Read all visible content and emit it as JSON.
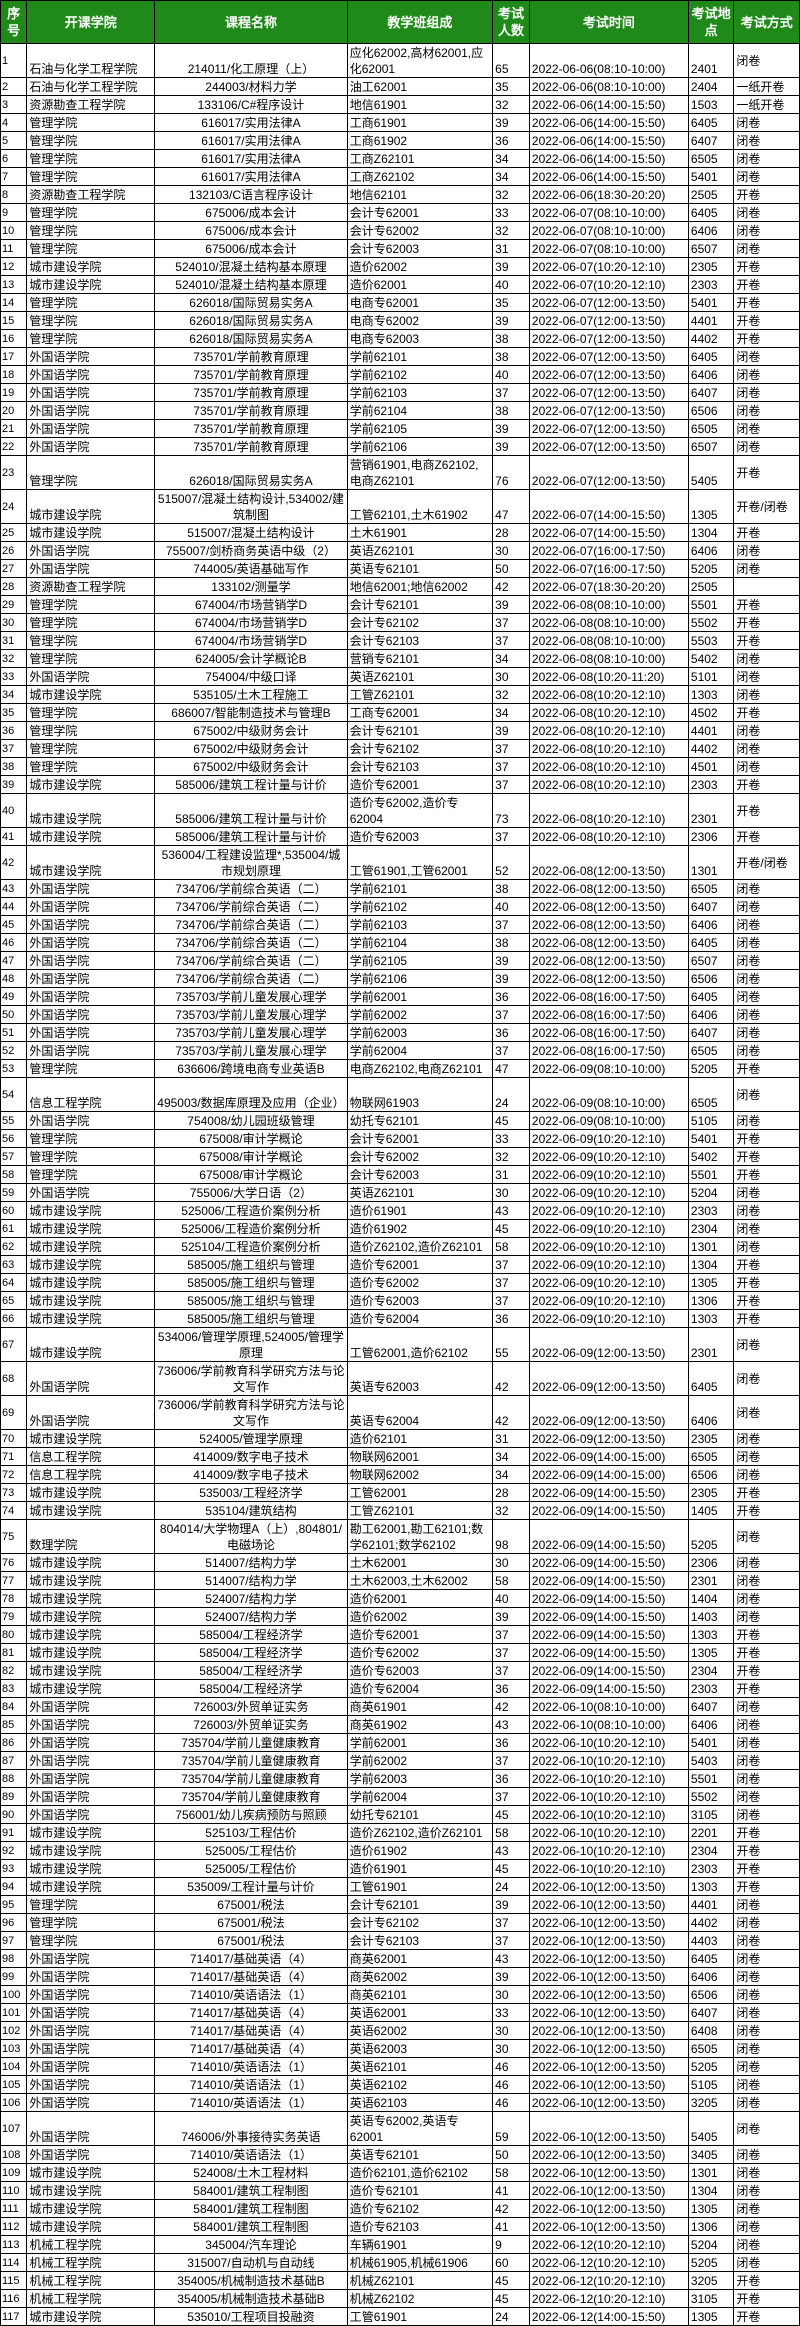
{
  "header": {
    "no": "序号",
    "college": "开课学院",
    "course": "课程名称",
    "classes": "教学班组成",
    "count": "考试人数",
    "time": "考试时间",
    "room": "考试地点",
    "type": "考试方式"
  },
  "colors": {
    "header_bg": "#1f8a1a",
    "header_text": "#ffffff"
  },
  "rows": [
    [
      "1",
      "石油与化学工程学院",
      "214011/化工原理（上）",
      "应化62002,高材62001,应化62001",
      "65",
      "2022-06-06(08:10-10:00)",
      "2401",
      "闭卷"
    ],
    [
      "2",
      "石油与化学工程学院",
      "244003/材料力学",
      "油工62001",
      "35",
      "2022-06-06(08:10-10:00)",
      "2404",
      "一纸开卷"
    ],
    [
      "3",
      "资源勘查工程学院",
      "133106/C#程序设计",
      "地信61901",
      "32",
      "2022-06-06(14:00-15:50)",
      "1503",
      "一纸开卷"
    ],
    [
      "4",
      "管理学院",
      "616017/实用法律A",
      "工商61901",
      "39",
      "2022-06-06(14:00-15:50)",
      "6405",
      "闭卷"
    ],
    [
      "5",
      "管理学院",
      "616017/实用法律A",
      "工商61902",
      "36",
      "2022-06-06(14:00-15:50)",
      "6407",
      "闭卷"
    ],
    [
      "6",
      "管理学院",
      "616017/实用法律A",
      "工商Z62101",
      "34",
      "2022-06-06(14:00-15:50)",
      "6505",
      "闭卷"
    ],
    [
      "7",
      "管理学院",
      "616017/实用法律A",
      "工商Z62102",
      "34",
      "2022-06-06(14:00-15:50)",
      "5401",
      "闭卷"
    ],
    [
      "8",
      "资源勘查工程学院",
      "132103/C语言程序设计",
      "地信62101",
      "32",
      "2022-06-06(18:30-20:20)",
      "2505",
      "开卷"
    ],
    [
      "9",
      "管理学院",
      "675006/成本会计",
      "会计专62001",
      "33",
      "2022-06-07(08:10-10:00)",
      "6405",
      "闭卷"
    ],
    [
      "10",
      "管理学院",
      "675006/成本会计",
      "会计专62002",
      "32",
      "2022-06-07(08:10-10:00)",
      "6406",
      "闭卷"
    ],
    [
      "11",
      "管理学院",
      "675006/成本会计",
      "会计专62003",
      "31",
      "2022-06-07(08:10-10:00)",
      "6507",
      "闭卷"
    ],
    [
      "12",
      "城市建设学院",
      "524010/混凝土结构基本原理",
      "造价62002",
      "39",
      "2022-06-07(10:20-12:10)",
      "2305",
      "开卷"
    ],
    [
      "13",
      "城市建设学院",
      "524010/混凝土结构基本原理",
      "造价62001",
      "40",
      "2022-06-07(10:20-12:10)",
      "2303",
      "开卷"
    ],
    [
      "14",
      "管理学院",
      "626018/国际贸易实务A",
      "电商专62001",
      "35",
      "2022-06-07(12:00-13:50)",
      "5401",
      "开卷"
    ],
    [
      "15",
      "管理学院",
      "626018/国际贸易实务A",
      "电商专62002",
      "39",
      "2022-06-07(12:00-13:50)",
      "4401",
      "开卷"
    ],
    [
      "16",
      "管理学院",
      "626018/国际贸易实务A",
      "电商专62003",
      "38",
      "2022-06-07(12:00-13:50)",
      "4402",
      "开卷"
    ],
    [
      "17",
      "外国语学院",
      "735701/学前教育原理",
      "学前62101",
      "38",
      "2022-06-07(12:00-13:50)",
      "6405",
      "闭卷"
    ],
    [
      "18",
      "外国语学院",
      "735701/学前教育原理",
      "学前62102",
      "40",
      "2022-06-07(12:00-13:50)",
      "6406",
      "闭卷"
    ],
    [
      "19",
      "外国语学院",
      "735701/学前教育原理",
      "学前62103",
      "37",
      "2022-06-07(12:00-13:50)",
      "6407",
      "闭卷"
    ],
    [
      "20",
      "外国语学院",
      "735701/学前教育原理",
      "学前62104",
      "38",
      "2022-06-07(12:00-13:50)",
      "6506",
      "闭卷"
    ],
    [
      "21",
      "外国语学院",
      "735701/学前教育原理",
      "学前62105",
      "39",
      "2022-06-07(12:00-13:50)",
      "6505",
      "闭卷"
    ],
    [
      "22",
      "外国语学院",
      "735701/学前教育原理",
      "学前62106",
      "39",
      "2022-06-07(12:00-13:50)",
      "6507",
      "闭卷"
    ],
    [
      "23",
      "管理学院",
      "626018/国际贸易实务A",
      "营销61901,电商Z62102,电商Z62101",
      "76",
      "2022-06-07(12:00-13:50)",
      "5405",
      "开卷"
    ],
    [
      "24",
      "城市建设学院",
      "515007/混凝土结构设计,534002/建筑制图",
      "工管62101,土木61902",
      "47",
      "2022-06-07(14:00-15:50)",
      "1305",
      "开卷/闭卷"
    ],
    [
      "25",
      "城市建设学院",
      "515007/混凝土结构设计",
      "土木61901",
      "28",
      "2022-06-07(14:00-15:50)",
      "1304",
      "开卷"
    ],
    [
      "26",
      "外国语学院",
      "755007/剑桥商务英语中级（2）",
      "英语Z62101",
      "30",
      "2022-06-07(16:00-17:50)",
      "6406",
      "闭卷"
    ],
    [
      "27",
      "外国语学院",
      "744005/英语基础写作",
      "英语专62101",
      "50",
      "2022-06-07(16:00-17:50)",
      "5205",
      "闭卷"
    ],
    [
      "28",
      "资源勘查工程学院",
      "133102/测量学",
      "地信62001;地信62002",
      "42",
      "2022-06-07(18:30-20:20)",
      "2505",
      ""
    ],
    [
      "29",
      "管理学院",
      "674004/市场营销学D",
      "会计专62101",
      "39",
      "2022-06-08(08:10-10:00)",
      "5501",
      "开卷"
    ],
    [
      "30",
      "管理学院",
      "674004/市场营销学D",
      "会计专62102",
      "37",
      "2022-06-08(08:10-10:00)",
      "5502",
      "开卷"
    ],
    [
      "31",
      "管理学院",
      "674004/市场营销学D",
      "会计专62103",
      "37",
      "2022-06-08(08:10-10:00)",
      "5503",
      "开卷"
    ],
    [
      "32",
      "管理学院",
      "624005/会计学概论B",
      "营销专62101",
      "34",
      "2022-06-08(08:10-10:00)",
      "5402",
      "闭卷"
    ],
    [
      "33",
      "外国语学院",
      "754004/中级口译",
      "英语Z62101",
      "30",
      "2022-06-08(10:20-11:20)",
      "5101",
      "闭卷"
    ],
    [
      "34",
      "城市建设学院",
      "535105/土木工程施工",
      "工管Z62101",
      "32",
      "2022-06-08(10:20-12:10)",
      "1303",
      "闭卷"
    ],
    [
      "35",
      "管理学院",
      "686007/智能制造技术与管理B",
      "工商专62001",
      "34",
      "2022-06-08(10:20-12:10)",
      "4502",
      "开卷"
    ],
    [
      "36",
      "管理学院",
      "675002/中级财务会计",
      "会计专62101",
      "39",
      "2022-06-08(10:20-12:10)",
      "4401",
      "闭卷"
    ],
    [
      "37",
      "管理学院",
      "675002/中级财务会计",
      "会计专62102",
      "37",
      "2022-06-08(10:20-12:10)",
      "4402",
      "闭卷"
    ],
    [
      "38",
      "管理学院",
      "675002/中级财务会计",
      "会计专62103",
      "37",
      "2022-06-08(10:20-12:10)",
      "4501",
      "闭卷"
    ],
    [
      "39",
      "城市建设学院",
      "585006/建筑工程计量与计价",
      "造价专62001",
      "37",
      "2022-06-08(10:20-12:10)",
      "2303",
      "开卷"
    ],
    [
      "40",
      "城市建设学院",
      "585006/建筑工程计量与计价",
      "造价专62002,造价专62004",
      "73",
      "2022-06-08(10:20-12:10)",
      "2301",
      "开卷"
    ],
    [
      "41",
      "城市建设学院",
      "585006/建筑工程计量与计价",
      "造价专62003",
      "37",
      "2022-06-08(10:20-12:10)",
      "2306",
      "开卷"
    ],
    [
      "42",
      "城市建设学院",
      "536004/工程建设监理*,535004/城市规划原理",
      "工管61901,工管62001",
      "52",
      "2022-06-08(12:00-13:50)",
      "1301",
      "开卷/闭卷"
    ],
    [
      "43",
      "外国语学院",
      "734706/学前综合英语（二）",
      "学前62101",
      "38",
      "2022-06-08(12:00-13:50)",
      "6505",
      "闭卷"
    ],
    [
      "44",
      "外国语学院",
      "734706/学前综合英语（二）",
      "学前62102",
      "40",
      "2022-06-08(12:00-13:50)",
      "6407",
      "闭卷"
    ],
    [
      "45",
      "外国语学院",
      "734706/学前综合英语（二）",
      "学前62103",
      "37",
      "2022-06-08(12:00-13:50)",
      "6406",
      "闭卷"
    ],
    [
      "46",
      "外国语学院",
      "734706/学前综合英语（二）",
      "学前62104",
      "38",
      "2022-06-08(12:00-13:50)",
      "6405",
      "闭卷"
    ],
    [
      "47",
      "外国语学院",
      "734706/学前综合英语（二）",
      "学前62105",
      "39",
      "2022-06-08(12:00-13:50)",
      "6507",
      "闭卷"
    ],
    [
      "48",
      "外国语学院",
      "734706/学前综合英语（二）",
      "学前62106",
      "39",
      "2022-06-08(12:00-13:50)",
      "6506",
      "闭卷"
    ],
    [
      "49",
      "外国语学院",
      "735703/学前儿童发展心理学",
      "学前62001",
      "36",
      "2022-06-08(16:00-17:50)",
      "6405",
      "闭卷"
    ],
    [
      "50",
      "外国语学院",
      "735703/学前儿童发展心理学",
      "学前62002",
      "37",
      "2022-06-08(16:00-17:50)",
      "6406",
      "闭卷"
    ],
    [
      "51",
      "外国语学院",
      "735703/学前儿童发展心理学",
      "学前62003",
      "36",
      "2022-06-08(16:00-17:50)",
      "6407",
      "闭卷"
    ],
    [
      "52",
      "外国语学院",
      "735703/学前儿童发展心理学",
      "学前62004",
      "37",
      "2022-06-08(16:00-17:50)",
      "6505",
      "闭卷"
    ],
    [
      "53",
      "管理学院",
      "636606/跨境电商专业英语B",
      "电商Z62102,电商Z62101",
      "47",
      "2022-06-09(08:10-10:00)",
      "5205",
      "开卷"
    ],
    [
      "54",
      "信息工程学院",
      "495003/数据库原理及应用（企业）",
      "物联网61903",
      "24",
      "2022-06-09(08:10-10:00)",
      "6505",
      "闭卷"
    ],
    [
      "55",
      "外国语学院",
      "754008/幼儿园班级管理",
      "幼托专62101",
      "45",
      "2022-06-09(08:10-10:00)",
      "5105",
      "闭卷"
    ],
    [
      "56",
      "管理学院",
      "675008/审计学概论",
      "会计专62001",
      "33",
      "2022-06-09(10:20-12:10)",
      "5401",
      "开卷"
    ],
    [
      "57",
      "管理学院",
      "675008/审计学概论",
      "会计专62002",
      "32",
      "2022-06-09(10:20-12:10)",
      "5402",
      "开卷"
    ],
    [
      "58",
      "管理学院",
      "675008/审计学概论",
      "会计专62003",
      "31",
      "2022-06-09(10:20-12:10)",
      "5501",
      "开卷"
    ],
    [
      "59",
      "外国语学院",
      "755006/大学日语（2）",
      "英语Z62101",
      "30",
      "2022-06-09(10:20-12:10)",
      "5204",
      "闭卷"
    ],
    [
      "60",
      "城市建设学院",
      "525006/工程造价案例分析",
      "造价61901",
      "43",
      "2022-06-09(10:20-12:10)",
      "2303",
      "闭卷"
    ],
    [
      "61",
      "城市建设学院",
      "525006/工程造价案例分析",
      "造价61902",
      "45",
      "2022-06-09(10:20-12:10)",
      "2304",
      "闭卷"
    ],
    [
      "62",
      "城市建设学院",
      "525104/工程造价案例分析",
      "造价Z62102,造价Z62101",
      "58",
      "2022-06-09(10:20-12:10)",
      "1301",
      "闭卷"
    ],
    [
      "63",
      "城市建设学院",
      "585005/施工组织与管理",
      "造价专62001",
      "37",
      "2022-06-09(10:20-12:10)",
      "1304",
      "开卷"
    ],
    [
      "64",
      "城市建设学院",
      "585005/施工组织与管理",
      "造价专62002",
      "37",
      "2022-06-09(10:20-12:10)",
      "1305",
      "开卷"
    ],
    [
      "65",
      "城市建设学院",
      "585005/施工组织与管理",
      "造价专62003",
      "37",
      "2022-06-09(10:20-12:10)",
      "1306",
      "开卷"
    ],
    [
      "66",
      "城市建设学院",
      "585005/施工组织与管理",
      "造价专62004",
      "36",
      "2022-06-09(10:20-12:10)",
      "1303",
      "开卷"
    ],
    [
      "67",
      "城市建设学院",
      "534006/管理学原理,524005/管理学原理",
      "工管62001,造价62102",
      "55",
      "2022-06-09(12:00-13:50)",
      "2301",
      "闭卷"
    ],
    [
      "68",
      "外国语学院",
      "736006/学前教育科学研究方法与论文写作",
      "英语专62003",
      "42",
      "2022-06-09(12:00-13:50)",
      "6405",
      "闭卷"
    ],
    [
      "69",
      "外国语学院",
      "736006/学前教育科学研究方法与论文写作",
      "英语专62004",
      "42",
      "2022-06-09(12:00-13:50)",
      "6406",
      "闭卷"
    ],
    [
      "70",
      "城市建设学院",
      "524005/管理学原理",
      "造价62101",
      "31",
      "2022-06-09(12:00-13:50)",
      "2305",
      "闭卷"
    ],
    [
      "71",
      "信息工程学院",
      "414009/数字电子技术",
      "物联网62001",
      "34",
      "2022-06-09(14:00-15:00)",
      "6505",
      "闭卷"
    ],
    [
      "72",
      "信息工程学院",
      "414009/数字电子技术",
      "物联网62002",
      "34",
      "2022-06-09(14:00-15:00)",
      "6506",
      "闭卷"
    ],
    [
      "73",
      "城市建设学院",
      "535003/工程经济学",
      "工管62001",
      "28",
      "2022-06-09(14:00-15:50)",
      "2305",
      "开卷"
    ],
    [
      "74",
      "城市建设学院",
      "535104/建筑结构",
      "工管Z62101",
      "32",
      "2022-06-09(14:00-15:50)",
      "1405",
      "开卷"
    ],
    [
      "75",
      "数理学院",
      "804014/大学物理A（上）,804801/电磁场论",
      "勘工62001,勘工62101;数学62101;数学62102",
      "98",
      "2022-06-09(14:00-15:50)",
      "5205",
      "闭卷"
    ],
    [
      "76",
      "城市建设学院",
      "514007/结构力学",
      "土木62001",
      "30",
      "2022-06-09(14:00-15:50)",
      "2306",
      "闭卷"
    ],
    [
      "77",
      "城市建设学院",
      "514007/结构力学",
      "土木62003,土木62002",
      "58",
      "2022-06-09(14:00-15:50)",
      "2301",
      "闭卷"
    ],
    [
      "78",
      "城市建设学院",
      "524007/结构力学",
      "造价62001",
      "40",
      "2022-06-09(14:00-15:50)",
      "1404",
      "闭卷"
    ],
    [
      "79",
      "城市建设学院",
      "524007/结构力学",
      "造价62002",
      "39",
      "2022-06-09(14:00-15:50)",
      "1403",
      "闭卷"
    ],
    [
      "80",
      "城市建设学院",
      "585004/工程经济学",
      "造价专62001",
      "37",
      "2022-06-09(14:00-15:50)",
      "1303",
      "开卷"
    ],
    [
      "81",
      "城市建设学院",
      "585004/工程经济学",
      "造价专62002",
      "37",
      "2022-06-09(14:00-15:50)",
      "1305",
      "开卷"
    ],
    [
      "82",
      "城市建设学院",
      "585004/工程经济学",
      "造价专62003",
      "37",
      "2022-06-09(14:00-15:50)",
      "2304",
      "开卷"
    ],
    [
      "83",
      "城市建设学院",
      "585004/工程经济学",
      "造价专62004",
      "36",
      "2022-06-09(14:00-15:50)",
      "2303",
      "开卷"
    ],
    [
      "84",
      "外国语学院",
      "726003/外贸单证实务",
      "商英61901",
      "42",
      "2022-06-10(08:10-10:00)",
      "6407",
      "闭卷"
    ],
    [
      "85",
      "外国语学院",
      "726003/外贸单证实务",
      "商英61902",
      "43",
      "2022-06-10(08:10-10:00)",
      "6406",
      "闭卷"
    ],
    [
      "86",
      "外国语学院",
      "735704/学前儿童健康教育",
      "学前62001",
      "36",
      "2022-06-10(10:20-12:10)",
      "5401",
      "闭卷"
    ],
    [
      "87",
      "外国语学院",
      "735704/学前儿童健康教育",
      "学前62002",
      "37",
      "2022-06-10(10:20-12:10)",
      "5403",
      "闭卷"
    ],
    [
      "88",
      "外国语学院",
      "735704/学前儿童健康教育",
      "学前62003",
      "36",
      "2022-06-10(10:20-12:10)",
      "5501",
      "闭卷"
    ],
    [
      "89",
      "外国语学院",
      "735704/学前儿童健康教育",
      "学前62004",
      "37",
      "2022-06-10(10:20-12:10)",
      "5502",
      "闭卷"
    ],
    [
      "90",
      "外国语学院",
      "756001/幼儿疾病预防与照顾",
      "幼托专62101",
      "45",
      "2022-06-10(10:20-12:10)",
      "3105",
      "闭卷"
    ],
    [
      "91",
      "城市建设学院",
      "525103/工程估价",
      "造价Z62102,造价Z62101",
      "58",
      "2022-06-10(10:20-12:10)",
      "2201",
      "开卷"
    ],
    [
      "92",
      "城市建设学院",
      "525005/工程估价",
      "造价61902",
      "43",
      "2022-06-10(10:20-12:10)",
      "2304",
      "开卷"
    ],
    [
      "93",
      "城市建设学院",
      "525005/工程估价",
      "造价61901",
      "45",
      "2022-06-10(10:20-12:10)",
      "2303",
      "开卷"
    ],
    [
      "94",
      "城市建设学院",
      "535009/工程计量与计价",
      "工管61901",
      "24",
      "2022-06-10(12:00-13:50)",
      "1303",
      "开卷"
    ],
    [
      "95",
      "管理学院",
      "675001/税法",
      "会计专62101",
      "39",
      "2022-06-10(12:00-13:50)",
      "4401",
      "闭卷"
    ],
    [
      "96",
      "管理学院",
      "675001/税法",
      "会计专62102",
      "37",
      "2022-06-10(12:00-13:50)",
      "4402",
      "闭卷"
    ],
    [
      "97",
      "管理学院",
      "675001/税法",
      "会计专62103",
      "37",
      "2022-06-10(12:00-13:50)",
      "4403",
      "闭卷"
    ],
    [
      "98",
      "外国语学院",
      "714017/基础英语（4）",
      "商英62001",
      "43",
      "2022-06-10(12:00-13:50)",
      "6405",
      "闭卷"
    ],
    [
      "99",
      "外国语学院",
      "714017/基础英语（4）",
      "商英62002",
      "39",
      "2022-06-10(12:00-13:50)",
      "6406",
      "闭卷"
    ],
    [
      "100",
      "外国语学院",
      "714010/英语语法（1）",
      "商英62101",
      "30",
      "2022-06-10(12:00-13:50)",
      "6506",
      "闭卷"
    ],
    [
      "101",
      "外国语学院",
      "714017/基础英语（4）",
      "英语62001",
      "33",
      "2022-06-10(12:00-13:50)",
      "6407",
      "闭卷"
    ],
    [
      "102",
      "外国语学院",
      "714017/基础英语（4）",
      "英语62002",
      "30",
      "2022-06-10(12:00-13:50)",
      "6408",
      "闭卷"
    ],
    [
      "103",
      "外国语学院",
      "714017/基础英语（4）",
      "英语62003",
      "30",
      "2022-06-10(12:00-13:50)",
      "6505",
      "闭卷"
    ],
    [
      "104",
      "外国语学院",
      "714010/英语语法（1）",
      "英语62101",
      "46",
      "2022-06-10(12:00-13:50)",
      "5205",
      "闭卷"
    ],
    [
      "105",
      "外国语学院",
      "714010/英语语法（1）",
      "英语62102",
      "46",
      "2022-06-10(12:00-13:50)",
      "5105",
      "闭卷"
    ],
    [
      "106",
      "外国语学院",
      "714010/英语语法（1）",
      "英语62103",
      "46",
      "2022-06-10(12:00-13:50)",
      "3205",
      "闭卷"
    ],
    [
      "107",
      "外国语学院",
      "746006/外事接待实务英语",
      "英语专62002,英语专62001",
      "59",
      "2022-06-10(12:00-13:50)",
      "5405",
      "闭卷"
    ],
    [
      "108",
      "外国语学院",
      "714010/英语语法（1）",
      "英语专62101",
      "50",
      "2022-06-10(12:00-13:50)",
      "3405",
      "闭卷"
    ],
    [
      "109",
      "城市建设学院",
      "524008/土木工程材料",
      "造价62101,造价62102",
      "58",
      "2022-06-10(12:00-13:50)",
      "1301",
      "闭卷"
    ],
    [
      "110",
      "城市建设学院",
      "584001/建筑工程制图",
      "造价专62101",
      "41",
      "2022-06-10(12:00-13:50)",
      "1304",
      "闭卷"
    ],
    [
      "111",
      "城市建设学院",
      "584001/建筑工程制图",
      "造价专62102",
      "42",
      "2022-06-10(12:00-13:50)",
      "1305",
      "闭卷"
    ],
    [
      "112",
      "城市建设学院",
      "584001/建筑工程制图",
      "造价专62103",
      "41",
      "2022-06-10(12:00-13:50)",
      "1306",
      "闭卷"
    ],
    [
      "113",
      "机械工程学院",
      "345004/汽车理论",
      "车辆61901",
      "9",
      "2022-06-12(10:20-12:10)",
      "5204",
      "闭卷"
    ],
    [
      "114",
      "机械工程学院",
      "315007/自动机与自动线",
      "机械61905,机械61906",
      "60",
      "2022-06-12(10:20-12:10)",
      "5205",
      "闭卷"
    ],
    [
      "115",
      "机械工程学院",
      "354005/机械制造技术基础B",
      "机械Z62101",
      "45",
      "2022-06-12(10:20-12:10)",
      "3205",
      "开卷"
    ],
    [
      "116",
      "机械工程学院",
      "354005/机械制造技术基础B",
      "机械Z62102",
      "45",
      "2022-06-12(10:20-12:10)",
      "3105",
      "开卷"
    ],
    [
      "117",
      "城市建设学院",
      "535010/工程项目投融资",
      "工管61901",
      "24",
      "2022-06-12(14:00-15:50)",
      "1305",
      "开卷"
    ]
  ]
}
